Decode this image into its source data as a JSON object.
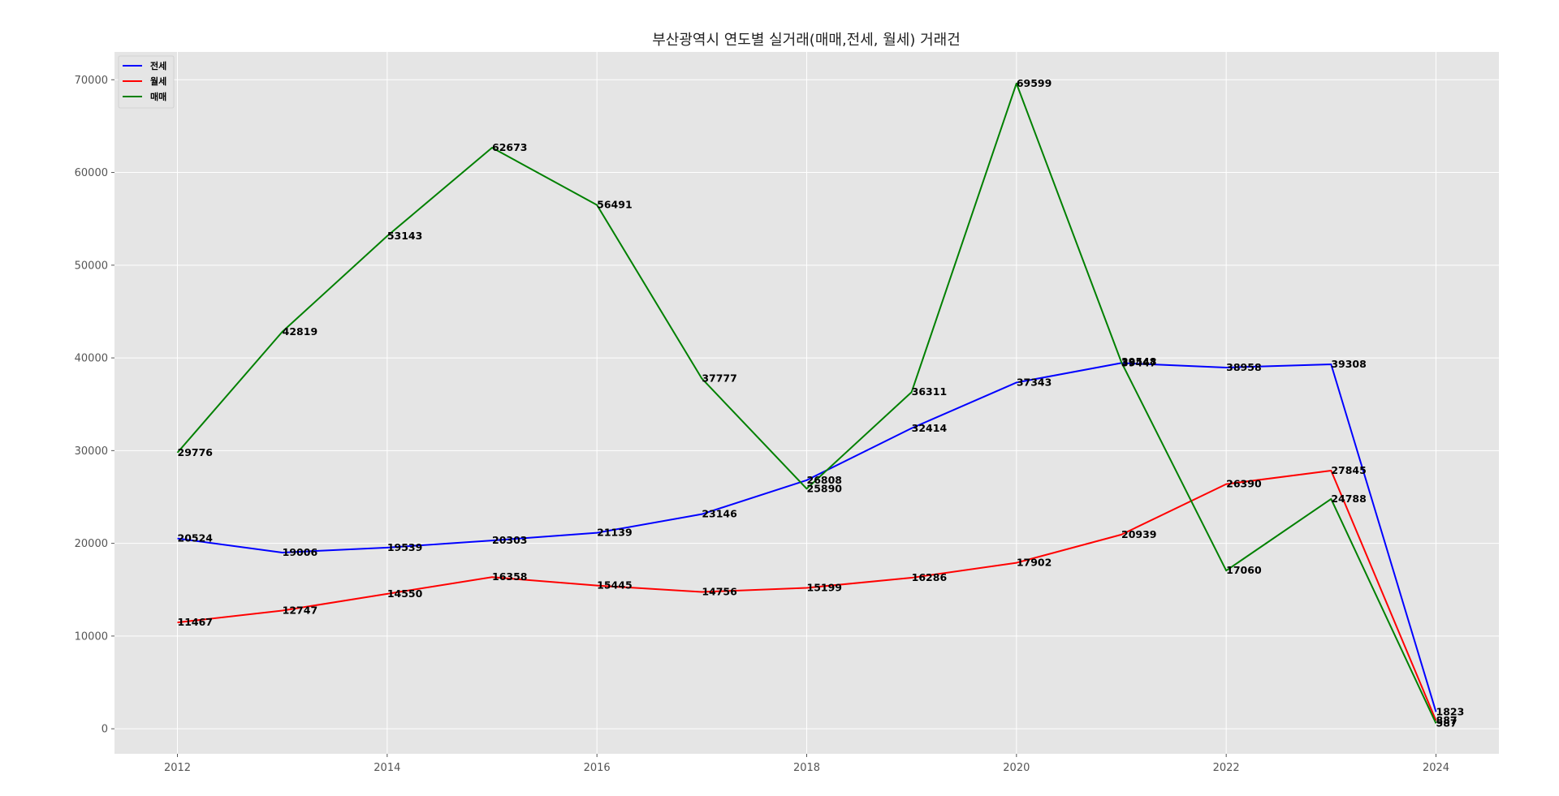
{
  "chart_data": {
    "type": "line",
    "title": "부산광역시 연도별 실거래(매매,전세, 월세) 거래건",
    "xlabel": "",
    "ylabel": "",
    "x": [
      2012,
      2013,
      2014,
      2015,
      2016,
      2017,
      2018,
      2019,
      2020,
      2021,
      2022,
      2023,
      2024
    ],
    "xlim": [
      2011.4,
      2024.6
    ],
    "ylim": [
      -2700,
      73000
    ],
    "x_ticks": [
      2012,
      2014,
      2016,
      2018,
      2020,
      2022,
      2024
    ],
    "x_tick_labels": [
      "2012",
      "2014",
      "2016",
      "2018",
      "2020",
      "2022",
      "2024"
    ],
    "y_ticks": [
      0,
      10000,
      20000,
      30000,
      40000,
      50000,
      60000,
      70000
    ],
    "y_tick_labels": [
      "0",
      "10000",
      "20000",
      "30000",
      "40000",
      "50000",
      "60000",
      "70000"
    ],
    "grid": true,
    "legend_position": "top-left",
    "background": "#e5e5e5",
    "series": [
      {
        "name": "전세",
        "color": "#0000ff",
        "values": [
          20524,
          19006,
          19539,
          20303,
          21139,
          23146,
          26808,
          32414,
          37343,
          39447,
          38958,
          39308,
          1823
        ],
        "labels": [
          "20524",
          "19006",
          "19539",
          "20303",
          "21139",
          "23146",
          "26808",
          "32414",
          "37343",
          "39447",
          "38958",
          "39308",
          "1823"
        ]
      },
      {
        "name": "월세",
        "color": "#ff0000",
        "values": [
          11467,
          12747,
          14550,
          16358,
          15445,
          14756,
          15199,
          16286,
          17902,
          20939,
          26390,
          27845,
          887
        ],
        "labels": [
          "11467",
          "12747",
          "14550",
          "16358",
          "15445",
          "14756",
          "15199",
          "16286",
          "17902",
          "20939",
          "26390",
          "27845",
          "887"
        ]
      },
      {
        "name": "매매",
        "color": "#008000",
        "values": [
          29776,
          42819,
          53143,
          62673,
          56491,
          37777,
          25890,
          36311,
          69599,
          39548,
          17060,
          24788,
          587
        ],
        "labels": [
          "29776",
          "42819",
          "53143",
          "62673",
          "56491",
          "37777",
          "25890",
          "36311",
          "69599",
          "39548",
          "17060",
          "24788",
          "587"
        ]
      }
    ]
  }
}
